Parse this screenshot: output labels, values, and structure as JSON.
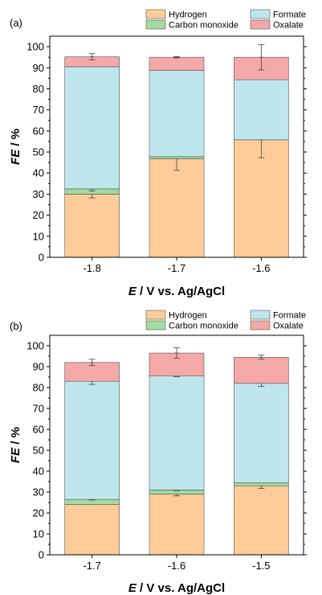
{
  "colors": {
    "Hydrogen": "#fdcc99",
    "Carbon monoxide": "#a2dc9f",
    "Formate": "#bfe6ed",
    "Oxalate": "#f4a8a8",
    "edge": "#555555",
    "axis": "#000000"
  },
  "chart_data": [
    {
      "panel_label": "(a)",
      "type": "bar",
      "stacked": true,
      "categories": [
        "-1.8",
        "-1.7",
        "-1.6"
      ],
      "series": [
        {
          "name": "Hydrogen",
          "values": [
            30,
            46.8,
            55.8
          ],
          "error": [
            1.8,
            5.5,
            8.5
          ]
        },
        {
          "name": "Carbon monoxide",
          "values": [
            2.5,
            1.0,
            0.0
          ],
          "error": [
            1.0,
            0.0,
            0.0
          ]
        },
        {
          "name": "Formate",
          "values": [
            58.0,
            41.0,
            28.5
          ],
          "error": [
            0.0,
            0.0,
            0.0
          ]
        },
        {
          "name": "Oxalate",
          "values": [
            4.7,
            6.2,
            10.7
          ],
          "error": [
            1.5,
            0.3,
            6.0
          ]
        }
      ],
      "xlabel_italic": "E",
      "xlabel_rest": " / V vs. Ag/AgCl",
      "ylabel_italic": "FE",
      "ylabel_rest": " / %",
      "ylim": [
        0,
        105
      ],
      "yticks": [
        0,
        10,
        20,
        30,
        40,
        50,
        60,
        70,
        80,
        90,
        100
      ],
      "legend_position": "top",
      "grid": false
    },
    {
      "panel_label": "(b)",
      "type": "bar",
      "stacked": true,
      "categories": [
        "-1.7",
        "-1.6",
        "-1.5"
      ],
      "series": [
        {
          "name": "Hydrogen",
          "values": [
            24,
            29,
            33
          ],
          "error": [
            0.0,
            0.8,
            1.2
          ]
        },
        {
          "name": "Carbon monoxide",
          "values": [
            2.5,
            2.0,
            1.5
          ],
          "error": [
            0.3,
            0.3,
            0.0
          ]
        },
        {
          "name": "Formate",
          "values": [
            56.5,
            54.5,
            47.5
          ],
          "error": [
            1.5,
            0.3,
            1.5
          ]
        },
        {
          "name": "Oxalate",
          "values": [
            9.0,
            11.0,
            12.5
          ],
          "error": [
            1.5,
            2.5,
            1.0
          ]
        }
      ],
      "xlabel_italic": "E",
      "xlabel_rest": " / V vs. Ag/AgCl",
      "ylabel_italic": "FE",
      "ylabel_rest": " / %",
      "ylim": [
        0,
        105
      ],
      "yticks": [
        0,
        10,
        20,
        30,
        40,
        50,
        60,
        70,
        80,
        90,
        100
      ],
      "legend_position": "top",
      "grid": false
    }
  ]
}
